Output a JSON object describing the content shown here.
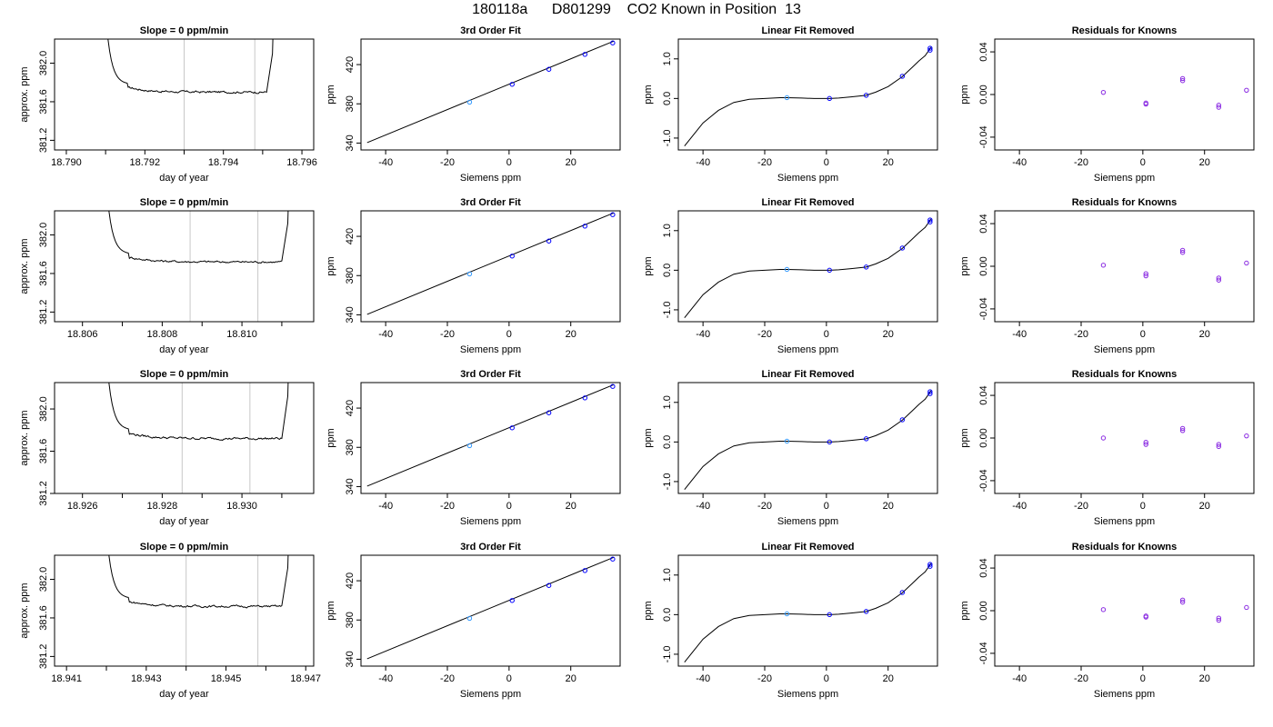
{
  "title": "180118a      D801299    CO2 Known in Position  13",
  "colors": {
    "line": "#000000",
    "known_point": "#0000ff",
    "ref_point": "#3399ff",
    "residual": "#8a2be2",
    "vline": "#c8c8c8"
  },
  "chart_data": [
    {
      "type": "line",
      "panel": "trace",
      "row": 1,
      "title": "Slope =  0  ppm/min",
      "xlabel": "day of year",
      "ylabel": "approx. ppm",
      "xlim": [
        18.7897,
        18.7963
      ],
      "ylim": [
        381.1,
        382.25
      ],
      "xticks": [
        18.79,
        18.791,
        18.792,
        18.793,
        18.794,
        18.795,
        18.796
      ],
      "xtick_labels": [
        "18.790",
        "",
        "18.792",
        "",
        "18.794",
        "",
        "18.796"
      ],
      "yticks": [
        381.2,
        381.6,
        382.0
      ],
      "ytick_labels": [
        "381.2",
        "381.6",
        "382.0"
      ],
      "start": 18.79098,
      "settle": 18.7911,
      "end": 18.7952,
      "level": 381.7,
      "vlines": [
        18.793,
        18.7948
      ]
    },
    {
      "type": "line",
      "panel": "trace",
      "row": 2,
      "title": "Slope =  0  ppm/min",
      "xlabel": "day of year",
      "ylabel": "approx. ppm",
      "xlim": [
        18.8053,
        18.8118
      ],
      "ylim": [
        381.1,
        382.25
      ],
      "xticks": [
        18.806,
        18.807,
        18.808,
        18.809,
        18.81,
        18.811
      ],
      "xtick_labels": [
        "18.806",
        "",
        "18.808",
        "",
        "18.810",
        ""
      ],
      "yticks": [
        381.2,
        381.6,
        382.0
      ],
      "ytick_labels": [
        "381.2",
        "381.6",
        "382.0"
      ],
      "start": 18.80658,
      "settle": 18.8067,
      "end": 18.8111,
      "level": 381.72,
      "vlines": [
        18.8087,
        18.8104
      ]
    },
    {
      "type": "line",
      "panel": "trace",
      "row": 3,
      "title": "Slope =  0  ppm/min",
      "xlabel": "day of year",
      "ylabel": "approx. ppm",
      "xlim": [
        18.9253,
        18.9318
      ],
      "ylim": [
        381.2,
        382.25
      ],
      "xticks": [
        18.926,
        18.927,
        18.928,
        18.929,
        18.93,
        18.931
      ],
      "xtick_labels": [
        "18.926",
        "",
        "18.928",
        "",
        "18.930",
        ""
      ],
      "yticks": [
        381.2,
        381.6,
        382.0
      ],
      "ytick_labels": [
        "381.2",
        "381.6",
        "382.0"
      ],
      "start": 18.92658,
      "settle": 18.9267,
      "end": 18.9311,
      "level": 381.72,
      "vlines": [
        18.9285,
        18.9302
      ]
    },
    {
      "type": "line",
      "panel": "trace",
      "row": 4,
      "title": "Slope =  0  ppm/min",
      "xlabel": "day of year",
      "ylabel": "approx. ppm",
      "xlim": [
        18.9407,
        18.9472
      ],
      "ylim": [
        381.1,
        382.25
      ],
      "xticks": [
        18.941,
        18.942,
        18.943,
        18.944,
        18.945,
        18.946,
        18.947
      ],
      "xtick_labels": [
        "18.941",
        "",
        "18.943",
        "",
        "18.945",
        "",
        "18.947"
      ],
      "yticks": [
        381.2,
        381.6,
        382.0
      ],
      "ytick_labels": [
        "381.2",
        "381.6",
        "382.0"
      ],
      "start": 18.94198,
      "settle": 18.9421,
      "end": 18.9465,
      "level": 381.72,
      "vlines": [
        18.944,
        18.9458
      ]
    },
    {
      "type": "scatter",
      "panel": "fit",
      "row": 1,
      "title": "3rd Order Fit",
      "xlabel": "Siemens ppm",
      "ylabel": "ppm",
      "xlim": [
        -48,
        36
      ],
      "ylim": [
        333,
        446
      ],
      "xticks": [
        -40,
        -20,
        0,
        20
      ],
      "xtick_labels": [
        "-40",
        "-20",
        "0",
        "20"
      ],
      "yticks": [
        340,
        380,
        420
      ],
      "ytick_labels": [
        "340",
        "380",
        "420"
      ],
      "line": {
        "x": [
          -46,
          34
        ],
        "y": [
          340.5,
          444
        ]
      },
      "points": [
        {
          "x": -12.8,
          "y": 381.7,
          "ref": true
        },
        {
          "x": 1,
          "y": 399.9
        },
        {
          "x": 12.9,
          "y": 415.2
        },
        {
          "x": 24.6,
          "y": 430.4
        },
        {
          "x": 33.6,
          "y": 442.1
        }
      ]
    },
    {
      "type": "scatter",
      "panel": "fit",
      "row": 2,
      "title": "3rd Order Fit",
      "xlabel": "Siemens ppm",
      "ylabel": "ppm",
      "xlim": [
        -48,
        36
      ],
      "ylim": [
        333,
        446
      ],
      "xticks": [
        -40,
        -20,
        0,
        20
      ],
      "xtick_labels": [
        "-40",
        "-20",
        "0",
        "20"
      ],
      "yticks": [
        340,
        380,
        420
      ],
      "ytick_labels": [
        "340",
        "380",
        "420"
      ],
      "line": {
        "x": [
          -46,
          34
        ],
        "y": [
          340.5,
          444
        ]
      },
      "points": [
        {
          "x": -12.8,
          "y": 381.7,
          "ref": true
        },
        {
          "x": 1,
          "y": 399.9
        },
        {
          "x": 12.9,
          "y": 415.2
        },
        {
          "x": 24.6,
          "y": 430.4
        },
        {
          "x": 33.6,
          "y": 442.1
        }
      ]
    },
    {
      "type": "scatter",
      "panel": "fit",
      "row": 3,
      "title": "3rd Order Fit",
      "xlabel": "Siemens ppm",
      "ylabel": "ppm",
      "xlim": [
        -48,
        36
      ],
      "ylim": [
        333,
        446
      ],
      "xticks": [
        -40,
        -20,
        0,
        20
      ],
      "xtick_labels": [
        "-40",
        "-20",
        "0",
        "20"
      ],
      "yticks": [
        340,
        380,
        420
      ],
      "ytick_labels": [
        "340",
        "380",
        "420"
      ],
      "line": {
        "x": [
          -46,
          34
        ],
        "y": [
          340.5,
          444
        ]
      },
      "points": [
        {
          "x": -12.8,
          "y": 381.7,
          "ref": true
        },
        {
          "x": 1,
          "y": 399.9
        },
        {
          "x": 12.9,
          "y": 415.2
        },
        {
          "x": 24.6,
          "y": 430.4
        },
        {
          "x": 33.6,
          "y": 442.1
        }
      ]
    },
    {
      "type": "scatter",
      "panel": "fit",
      "row": 4,
      "title": "3rd Order Fit",
      "xlabel": "Siemens ppm",
      "ylabel": "ppm",
      "xlim": [
        -48,
        36
      ],
      "ylim": [
        333,
        446
      ],
      "xticks": [
        -40,
        -20,
        0,
        20
      ],
      "xtick_labels": [
        "-40",
        "-20",
        "0",
        "20"
      ],
      "yticks": [
        340,
        380,
        420
      ],
      "ytick_labels": [
        "340",
        "380",
        "420"
      ],
      "line": {
        "x": [
          -46,
          34
        ],
        "y": [
          340.5,
          444
        ]
      },
      "points": [
        {
          "x": -12.8,
          "y": 381.7,
          "ref": true
        },
        {
          "x": 1,
          "y": 399.9
        },
        {
          "x": 12.9,
          "y": 415.2
        },
        {
          "x": 24.6,
          "y": 430.4
        },
        {
          "x": 33.6,
          "y": 442.1
        }
      ]
    },
    {
      "type": "scatter",
      "panel": "linear_removed",
      "row": 1,
      "title": "Linear Fit Removed",
      "xlabel": "Siemens ppm",
      "ylabel": "ppm",
      "xlim": [
        -48,
        36
      ],
      "ylim": [
        -1.3,
        1.5
      ],
      "xticks": [
        -40,
        -20,
        0,
        20
      ],
      "xtick_labels": [
        "-40",
        "-20",
        "0",
        "20"
      ],
      "yticks": [
        -1.0,
        0.0,
        1.0
      ],
      "ytick_labels": [
        "-1.0",
        "0.0",
        "1.0"
      ],
      "curve": {
        "x": [
          -46,
          -40,
          -35,
          -30,
          -25,
          -20,
          -15,
          -12.8,
          -8,
          -4,
          0,
          1,
          4,
          8,
          12.9,
          16,
          20,
          24.6,
          28,
          30,
          32,
          34
        ],
        "y": [
          -1.2,
          -0.62,
          -0.3,
          -0.1,
          -0.02,
          0.0,
          0.02,
          0.02,
          0.01,
          0.0,
          0.0,
          0.0,
          0.01,
          0.04,
          0.08,
          0.16,
          0.3,
          0.55,
          0.8,
          0.95,
          1.08,
          1.3
        ]
      },
      "points": [
        {
          "x": -12.8,
          "y": 0.02,
          "ref": true
        },
        {
          "x": 1,
          "y": 0.0
        },
        {
          "x": 12.9,
          "y": 0.08
        },
        {
          "x": 24.6,
          "y": 0.56
        },
        {
          "x": 33.6,
          "y": 1.22
        },
        {
          "x": 33.6,
          "y": 1.27
        }
      ]
    },
    {
      "type": "scatter",
      "panel": "linear_removed",
      "row": 2,
      "title": "Linear Fit Removed",
      "xlabel": "Siemens ppm",
      "ylabel": "ppm",
      "xlim": [
        -48,
        36
      ],
      "ylim": [
        -1.3,
        1.5
      ],
      "xticks": [
        -40,
        -20,
        0,
        20
      ],
      "xtick_labels": [
        "-40",
        "-20",
        "0",
        "20"
      ],
      "yticks": [
        -1.0,
        0.0,
        1.0
      ],
      "ytick_labels": [
        "-1.0",
        "0.0",
        "1.0"
      ],
      "curve": {
        "x": [
          -46,
          -40,
          -35,
          -30,
          -25,
          -20,
          -15,
          -12.8,
          -8,
          -4,
          0,
          1,
          4,
          8,
          12.9,
          16,
          20,
          24.6,
          28,
          30,
          32,
          34
        ],
        "y": [
          -1.2,
          -0.62,
          -0.3,
          -0.1,
          -0.02,
          0.0,
          0.02,
          0.02,
          0.01,
          0.0,
          0.0,
          0.0,
          0.01,
          0.04,
          0.08,
          0.16,
          0.3,
          0.55,
          0.8,
          0.95,
          1.08,
          1.3
        ]
      },
      "points": [
        {
          "x": -12.8,
          "y": 0.02,
          "ref": true
        },
        {
          "x": 1,
          "y": 0.0
        },
        {
          "x": 12.9,
          "y": 0.08
        },
        {
          "x": 24.6,
          "y": 0.56
        },
        {
          "x": 33.6,
          "y": 1.22
        },
        {
          "x": 33.6,
          "y": 1.27
        }
      ]
    },
    {
      "type": "scatter",
      "panel": "linear_removed",
      "row": 3,
      "title": "Linear Fit Removed",
      "xlabel": "Siemens ppm",
      "ylabel": "ppm",
      "xlim": [
        -48,
        36
      ],
      "ylim": [
        -1.3,
        1.5
      ],
      "xticks": [
        -40,
        -20,
        0,
        20
      ],
      "xtick_labels": [
        "-40",
        "-20",
        "0",
        "20"
      ],
      "yticks": [
        -1.0,
        0.0,
        1.0
      ],
      "ytick_labels": [
        "-1.0",
        "0.0",
        "1.0"
      ],
      "curve": {
        "x": [
          -46,
          -40,
          -35,
          -30,
          -25,
          -20,
          -15,
          -12.8,
          -8,
          -4,
          0,
          1,
          4,
          8,
          12.9,
          16,
          20,
          24.6,
          28,
          30,
          32,
          34
        ],
        "y": [
          -1.2,
          -0.62,
          -0.3,
          -0.1,
          -0.02,
          0.0,
          0.02,
          0.02,
          0.01,
          0.0,
          0.0,
          0.0,
          0.01,
          0.04,
          0.08,
          0.16,
          0.3,
          0.55,
          0.8,
          0.95,
          1.08,
          1.3
        ]
      },
      "points": [
        {
          "x": -12.8,
          "y": 0.02,
          "ref": true
        },
        {
          "x": 1,
          "y": 0.0
        },
        {
          "x": 12.9,
          "y": 0.08
        },
        {
          "x": 24.6,
          "y": 0.56
        },
        {
          "x": 33.6,
          "y": 1.22
        },
        {
          "x": 33.6,
          "y": 1.27
        }
      ]
    },
    {
      "type": "scatter",
      "panel": "linear_removed",
      "row": 4,
      "title": "Linear Fit Removed",
      "xlabel": "Siemens ppm",
      "ylabel": "ppm",
      "xlim": [
        -48,
        36
      ],
      "ylim": [
        -1.3,
        1.5
      ],
      "xticks": [
        -40,
        -20,
        0,
        20
      ],
      "xtick_labels": [
        "-40",
        "-20",
        "0",
        "20"
      ],
      "yticks": [
        -1.0,
        0.0,
        1.0
      ],
      "ytick_labels": [
        "-1.0",
        "0.0",
        "1.0"
      ],
      "curve": {
        "x": [
          -46,
          -40,
          -35,
          -30,
          -25,
          -20,
          -15,
          -12.8,
          -8,
          -4,
          0,
          1,
          4,
          8,
          12.9,
          16,
          20,
          24.6,
          28,
          30,
          32,
          34
        ],
        "y": [
          -1.2,
          -0.62,
          -0.3,
          -0.1,
          -0.02,
          0.0,
          0.02,
          0.02,
          0.01,
          0.0,
          0.0,
          0.0,
          0.01,
          0.04,
          0.08,
          0.16,
          0.3,
          0.55,
          0.8,
          0.95,
          1.08,
          1.3
        ]
      },
      "points": [
        {
          "x": -12.8,
          "y": 0.02,
          "ref": true
        },
        {
          "x": 1,
          "y": 0.0
        },
        {
          "x": 12.9,
          "y": 0.08
        },
        {
          "x": 24.6,
          "y": 0.56
        },
        {
          "x": 33.6,
          "y": 1.22
        },
        {
          "x": 33.6,
          "y": 1.27
        }
      ]
    },
    {
      "type": "scatter",
      "panel": "residuals",
      "row": 1,
      "title": "Residuals for Knowns",
      "xlabel": "Siemens ppm",
      "ylabel": "ppm",
      "xlim": [
        -48,
        36
      ],
      "ylim": [
        -0.052,
        0.052
      ],
      "xticks": [
        -40,
        -20,
        0,
        20
      ],
      "xtick_labels": [
        "-40",
        "-20",
        "0",
        "20"
      ],
      "yticks": [
        -0.04,
        0.0,
        0.04
      ],
      "ytick_labels": [
        "-0.04",
        "0.00",
        "0.04"
      ],
      "points": [
        {
          "x": -12.8,
          "y": 0.002
        },
        {
          "x": 1,
          "y": -0.008
        },
        {
          "x": 1,
          "y": -0.009
        },
        {
          "x": 12.9,
          "y": 0.013
        },
        {
          "x": 12.9,
          "y": 0.015
        },
        {
          "x": 24.6,
          "y": -0.01
        },
        {
          "x": 24.6,
          "y": -0.012
        },
        {
          "x": 33.6,
          "y": 0.004
        }
      ]
    },
    {
      "type": "scatter",
      "panel": "residuals",
      "row": 2,
      "title": "Residuals for Knowns",
      "xlabel": "Siemens ppm",
      "ylabel": "ppm",
      "xlim": [
        -48,
        36
      ],
      "ylim": [
        -0.052,
        0.052
      ],
      "xticks": [
        -40,
        -20,
        0,
        20
      ],
      "xtick_labels": [
        "-40",
        "-20",
        "0",
        "20"
      ],
      "yticks": [
        -0.04,
        0.0,
        0.04
      ],
      "ytick_labels": [
        "-0.04",
        "0.00",
        "0.04"
      ],
      "points": [
        {
          "x": -12.8,
          "y": 0.001
        },
        {
          "x": 1,
          "y": -0.007
        },
        {
          "x": 1,
          "y": -0.009
        },
        {
          "x": 12.9,
          "y": 0.013
        },
        {
          "x": 12.9,
          "y": 0.015
        },
        {
          "x": 24.6,
          "y": -0.011
        },
        {
          "x": 24.6,
          "y": -0.013
        },
        {
          "x": 33.6,
          "y": 0.003
        }
      ]
    },
    {
      "type": "scatter",
      "panel": "residuals",
      "row": 3,
      "title": "Residuals for Knowns",
      "xlabel": "Siemens ppm",
      "ylabel": "ppm",
      "xlim": [
        -48,
        36
      ],
      "ylim": [
        -0.052,
        0.052
      ],
      "xticks": [
        -40,
        -20,
        0,
        20
      ],
      "xtick_labels": [
        "-40",
        "-20",
        "0",
        "20"
      ],
      "yticks": [
        -0.04,
        0.0,
        0.04
      ],
      "ytick_labels": [
        "-0.04",
        "0.00",
        "0.04"
      ],
      "points": [
        {
          "x": -12.8,
          "y": 0.0
        },
        {
          "x": 1,
          "y": -0.004
        },
        {
          "x": 1,
          "y": -0.006
        },
        {
          "x": 12.9,
          "y": 0.007
        },
        {
          "x": 12.9,
          "y": 0.009
        },
        {
          "x": 24.6,
          "y": -0.006
        },
        {
          "x": 24.6,
          "y": -0.008
        },
        {
          "x": 33.6,
          "y": 0.002
        }
      ]
    },
    {
      "type": "scatter",
      "panel": "residuals",
      "row": 4,
      "title": "Residuals for Knowns",
      "xlabel": "Siemens ppm",
      "ylabel": "ppm",
      "xlim": [
        -48,
        36
      ],
      "ylim": [
        -0.052,
        0.052
      ],
      "xticks": [
        -40,
        -20,
        0,
        20
      ],
      "xtick_labels": [
        "-40",
        "-20",
        "0",
        "20"
      ],
      "yticks": [
        -0.04,
        0.0,
        0.04
      ],
      "ytick_labels": [
        "-0.04",
        "0.00",
        "0.04"
      ],
      "points": [
        {
          "x": -12.8,
          "y": 0.001
        },
        {
          "x": 1,
          "y": -0.005
        },
        {
          "x": 1,
          "y": -0.006
        },
        {
          "x": 12.9,
          "y": 0.008
        },
        {
          "x": 12.9,
          "y": 0.01
        },
        {
          "x": 24.6,
          "y": -0.007
        },
        {
          "x": 24.6,
          "y": -0.009
        },
        {
          "x": 33.6,
          "y": 0.003
        }
      ]
    }
  ]
}
